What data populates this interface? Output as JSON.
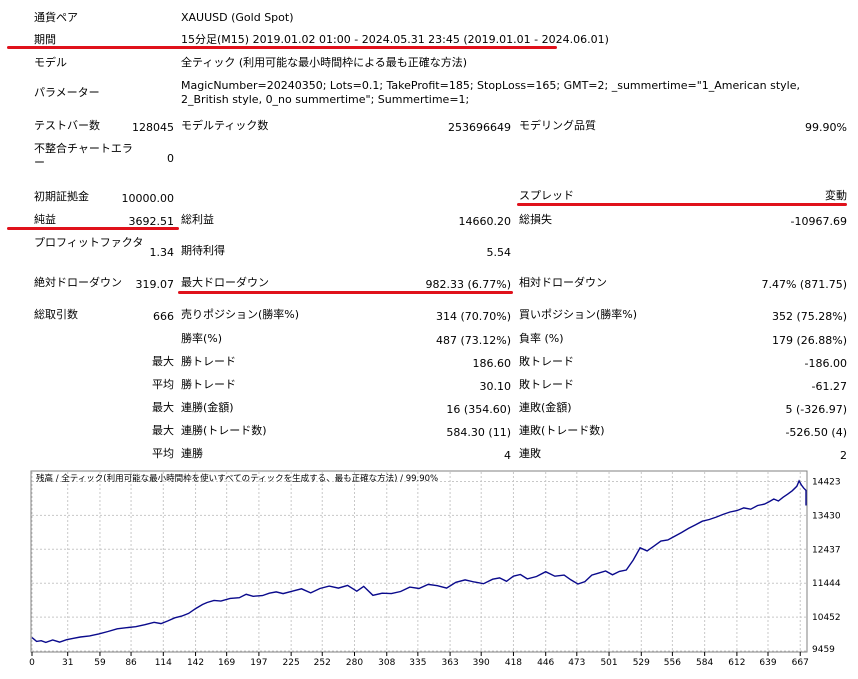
{
  "report": {
    "symbol_label": "通貨ペア",
    "symbol_value": "XAUUSD (Gold Spot)",
    "period_label": "期間",
    "period_value": "15分足(M15) 2019.01.02 01:00 - 2024.05.31 23:45 (2019.01.01 - 2024.06.01)",
    "model_label": "モデル",
    "model_value": "全ティック (利用可能な最小時間枠による最も正確な方法)",
    "params_label": "パラメーター",
    "params_value": "MagicNumber=20240350; Lots=0.1; TakeProfit=185; StopLoss=165; GMT=2; _summertime=\"1_American style, 2_British style, 0_no summertime\"; Summertime=1;"
  },
  "stats": {
    "bars_label": "テストバー数",
    "bars_value": "128045",
    "ticks_label": "モデルティック数",
    "ticks_value": "253696649",
    "quality_label": "モデリング品質",
    "quality_value": "99.90%",
    "mismatch_label": "不整合チャートエラー",
    "mismatch_value": "0",
    "deposit_label": "初期証拠金",
    "deposit_value": "10000.00",
    "spread_label": "スプレッド",
    "spread_value": "変動",
    "net_label": "純益",
    "net_value": "3692.51",
    "gross_profit_label": "総利益",
    "gross_profit_value": "14660.20",
    "gross_loss_label": "総損失",
    "gross_loss_value": "-10967.69",
    "pf_label": "プロフィットファクタ",
    "pf_value": "1.34",
    "expected_label": "期待利得",
    "expected_value": "5.54",
    "abs_dd_label": "絶対ドローダウン",
    "abs_dd_value": "319.07",
    "max_dd_label": "最大ドローダウン",
    "max_dd_value": "982.33 (6.77%)",
    "rel_dd_label": "相対ドローダウン",
    "rel_dd_value": "7.47% (871.75)",
    "trades_label": "総取引数",
    "trades_value": "666",
    "short_label": "売りポジション(勝率%)",
    "short_value": "314 (70.70%)",
    "long_label": "買いポジション(勝率%)",
    "long_value": "352 (75.28%)",
    "winpct_label": "勝率(%)",
    "winpct_value": "487 (73.12%)",
    "losspct_label": "負率 (%)",
    "losspct_value": "179 (26.88%)",
    "max_word": "最大",
    "avg_word": "平均",
    "largest_win_label": "勝トレード",
    "largest_win_value": "186.60",
    "largest_loss_label": "敗トレード",
    "largest_loss_value": "-186.00",
    "avg_win_label": "勝トレード",
    "avg_win_value": "30.10",
    "avg_loss_label": "敗トレード",
    "avg_loss_value": "-61.27",
    "max_cons_win_label": "連勝(金額)",
    "max_cons_win_value": "16 (354.60)",
    "max_cons_loss_label": "連敗(金額)",
    "max_cons_loss_value": "5 (-326.97)",
    "max_cons_profit_label": "連勝(トレード数)",
    "max_cons_profit_value": "584.30 (11)",
    "max_cons_lossamt_label": "連敗(トレード数)",
    "max_cons_lossamt_value": "-526.50 (4)",
    "avg_cons_win_label": "連勝",
    "avg_cons_win_value": "4",
    "avg_cons_loss_label": "連敗",
    "avg_cons_loss_value": "2"
  },
  "colors": {
    "line": "#0a0a8c",
    "highlight": "#e0111b",
    "grid": "#c8c8c8"
  },
  "chart_data": {
    "type": "line",
    "title": "残高 / 全ティック(利用可能な最小時間枠を使いすべてのティックを生成する、最も正確な方法) / 99.90%",
    "x_ticks": [
      0,
      31,
      59,
      86,
      114,
      142,
      169,
      197,
      225,
      252,
      280,
      308,
      335,
      363,
      390,
      418,
      446,
      473,
      501,
      529,
      556,
      584,
      612,
      639,
      667
    ],
    "y_ticks": [
      9459,
      10452,
      11444,
      12437,
      13430,
      14423
    ],
    "xlim": [
      0,
      672
    ],
    "ylim": [
      9459,
      14700
    ],
    "series": [
      {
        "values": [
          [
            0,
            9850
          ],
          [
            4,
            9740
          ],
          [
            8,
            9760
          ],
          [
            12,
            9710
          ],
          [
            18,
            9780
          ],
          [
            24,
            9720
          ],
          [
            30,
            9790
          ],
          [
            36,
            9830
          ],
          [
            42,
            9870
          ],
          [
            50,
            9900
          ],
          [
            58,
            9960
          ],
          [
            66,
            10030
          ],
          [
            74,
            10110
          ],
          [
            82,
            10140
          ],
          [
            90,
            10170
          ],
          [
            98,
            10230
          ],
          [
            106,
            10300
          ],
          [
            112,
            10260
          ],
          [
            118,
            10340
          ],
          [
            124,
            10430
          ],
          [
            130,
            10480
          ],
          [
            136,
            10560
          ],
          [
            142,
            10700
          ],
          [
            148,
            10820
          ],
          [
            152,
            10880
          ],
          [
            158,
            10940
          ],
          [
            164,
            10920
          ],
          [
            172,
            11000
          ],
          [
            180,
            11020
          ],
          [
            186,
            11120
          ],
          [
            192,
            11060
          ],
          [
            200,
            11080
          ],
          [
            206,
            11150
          ],
          [
            212,
            11190
          ],
          [
            218,
            11140
          ],
          [
            226,
            11210
          ],
          [
            234,
            11280
          ],
          [
            242,
            11160
          ],
          [
            250,
            11290
          ],
          [
            258,
            11360
          ],
          [
            266,
            11300
          ],
          [
            274,
            11380
          ],
          [
            282,
            11210
          ],
          [
            288,
            11350
          ],
          [
            296,
            11090
          ],
          [
            304,
            11150
          ],
          [
            312,
            11140
          ],
          [
            320,
            11200
          ],
          [
            328,
            11330
          ],
          [
            336,
            11290
          ],
          [
            344,
            11410
          ],
          [
            352,
            11370
          ],
          [
            360,
            11300
          ],
          [
            368,
            11470
          ],
          [
            376,
            11540
          ],
          [
            384,
            11480
          ],
          [
            392,
            11430
          ],
          [
            400,
            11560
          ],
          [
            406,
            11600
          ],
          [
            412,
            11500
          ],
          [
            418,
            11650
          ],
          [
            424,
            11700
          ],
          [
            430,
            11570
          ],
          [
            438,
            11640
          ],
          [
            446,
            11780
          ],
          [
            454,
            11650
          ],
          [
            462,
            11680
          ],
          [
            468,
            11540
          ],
          [
            474,
            11420
          ],
          [
            480,
            11490
          ],
          [
            486,
            11680
          ],
          [
            492,
            11740
          ],
          [
            498,
            11800
          ],
          [
            504,
            11690
          ],
          [
            510,
            11790
          ],
          [
            516,
            11830
          ],
          [
            522,
            12120
          ],
          [
            528,
            12480
          ],
          [
            534,
            12390
          ],
          [
            540,
            12530
          ],
          [
            546,
            12680
          ],
          [
            552,
            12710
          ],
          [
            558,
            12820
          ],
          [
            564,
            12930
          ],
          [
            570,
            13050
          ],
          [
            576,
            13150
          ],
          [
            582,
            13260
          ],
          [
            588,
            13310
          ],
          [
            594,
            13380
          ],
          [
            600,
            13460
          ],
          [
            606,
            13530
          ],
          [
            612,
            13570
          ],
          [
            618,
            13650
          ],
          [
            624,
            13610
          ],
          [
            630,
            13720
          ],
          [
            636,
            13760
          ],
          [
            640,
            13830
          ],
          [
            644,
            13910
          ],
          [
            648,
            13850
          ],
          [
            652,
            13960
          ],
          [
            656,
            14050
          ],
          [
            660,
            14150
          ],
          [
            664,
            14280
          ],
          [
            666,
            14440
          ],
          [
            668,
            14320
          ],
          [
            670,
            14230
          ],
          [
            672,
            14160
          ],
          [
            675,
            13860
          ],
          [
            678,
            13720
          ],
          [
            682,
            13770
          ]
        ]
      }
    ]
  }
}
